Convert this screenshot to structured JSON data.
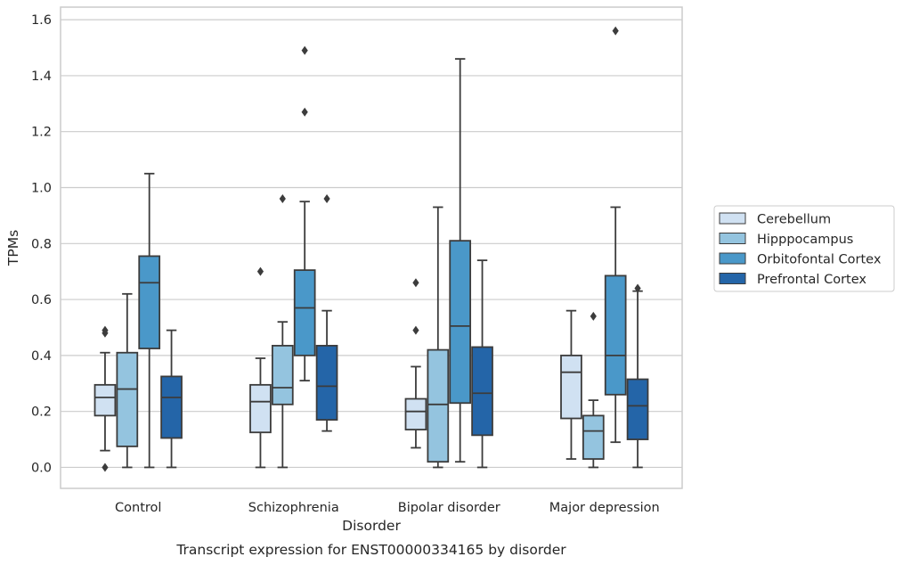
{
  "caption": "Transcript expression for ENST00000334165 by disorder",
  "chart_data": {
    "type": "boxplot",
    "xlabel": "Disorder",
    "ylabel": "TPMs",
    "ylim": [
      -0.075,
      1.645
    ],
    "yticks": [
      "0.0",
      "0.2",
      "0.4",
      "0.6",
      "0.8",
      "1.0",
      "1.2",
      "1.4",
      "1.6"
    ],
    "ytick_values": [
      0,
      0.2,
      0.4,
      0.6,
      0.8,
      1.0,
      1.2,
      1.4,
      1.6
    ],
    "grid": true,
    "legend_position": "right",
    "categories": [
      "Control",
      "Schizophrenia",
      "Bipolar disorder",
      "Major depression"
    ],
    "series": [
      {
        "name": "Cerebellum",
        "color": "#d0e1f2",
        "boxes": [
          {
            "whislo": 0.06,
            "q1": 0.185,
            "med": 0.25,
            "q3": 0.295,
            "whishi": 0.41,
            "fliers": [
              0.48,
              0.49,
              0.0
            ]
          },
          {
            "whislo": 0.0,
            "q1": 0.125,
            "med": 0.235,
            "q3": 0.295,
            "whishi": 0.39,
            "fliers": [
              0.7
            ]
          },
          {
            "whislo": 0.07,
            "q1": 0.135,
            "med": 0.2,
            "q3": 0.245,
            "whishi": 0.36,
            "fliers": [
              0.49,
              0.66
            ]
          },
          {
            "whislo": 0.03,
            "q1": 0.175,
            "med": 0.34,
            "q3": 0.4,
            "whishi": 0.56,
            "fliers": []
          }
        ]
      },
      {
        "name": "Hipppocampus",
        "color": "#94c4df",
        "boxes": [
          {
            "whislo": 0.0,
            "q1": 0.075,
            "med": 0.28,
            "q3": 0.41,
            "whishi": 0.62,
            "fliers": []
          },
          {
            "whislo": 0.0,
            "q1": 0.225,
            "med": 0.285,
            "q3": 0.435,
            "whishi": 0.52,
            "fliers": [
              0.96
            ]
          },
          {
            "whislo": 0.0,
            "q1": 0.02,
            "med": 0.225,
            "q3": 0.42,
            "whishi": 0.93,
            "fliers": []
          },
          {
            "whislo": 0.0,
            "q1": 0.03,
            "med": 0.13,
            "q3": 0.185,
            "whishi": 0.24,
            "fliers": [
              0.54
            ]
          }
        ]
      },
      {
        "name": "Orbitofontal Cortex",
        "color": "#4a98c9",
        "boxes": [
          {
            "whislo": 0.0,
            "q1": 0.425,
            "med": 0.66,
            "q3": 0.755,
            "whishi": 1.05,
            "fliers": []
          },
          {
            "whislo": 0.31,
            "q1": 0.4,
            "med": 0.57,
            "q3": 0.705,
            "whishi": 0.95,
            "fliers": [
              1.27,
              1.49
            ]
          },
          {
            "whislo": 0.02,
            "q1": 0.23,
            "med": 0.505,
            "q3": 0.81,
            "whishi": 1.46,
            "fliers": []
          },
          {
            "whislo": 0.09,
            "q1": 0.26,
            "med": 0.4,
            "q3": 0.685,
            "whishi": 0.93,
            "fliers": [
              1.56
            ]
          }
        ]
      },
      {
        "name": "Prefrontal Cortex",
        "color": "#2465a8",
        "boxes": [
          {
            "whislo": 0.0,
            "q1": 0.105,
            "med": 0.25,
            "q3": 0.325,
            "whishi": 0.49,
            "fliers": []
          },
          {
            "whislo": 0.13,
            "q1": 0.17,
            "med": 0.29,
            "q3": 0.435,
            "whishi": 0.56,
            "fliers": [
              0.96
            ]
          },
          {
            "whislo": 0.0,
            "q1": 0.115,
            "med": 0.265,
            "q3": 0.43,
            "whishi": 0.74,
            "fliers": []
          },
          {
            "whislo": 0.0,
            "q1": 0.1,
            "med": 0.22,
            "q3": 0.315,
            "whishi": 0.63,
            "fliers": [
              0.64
            ]
          }
        ]
      }
    ]
  }
}
